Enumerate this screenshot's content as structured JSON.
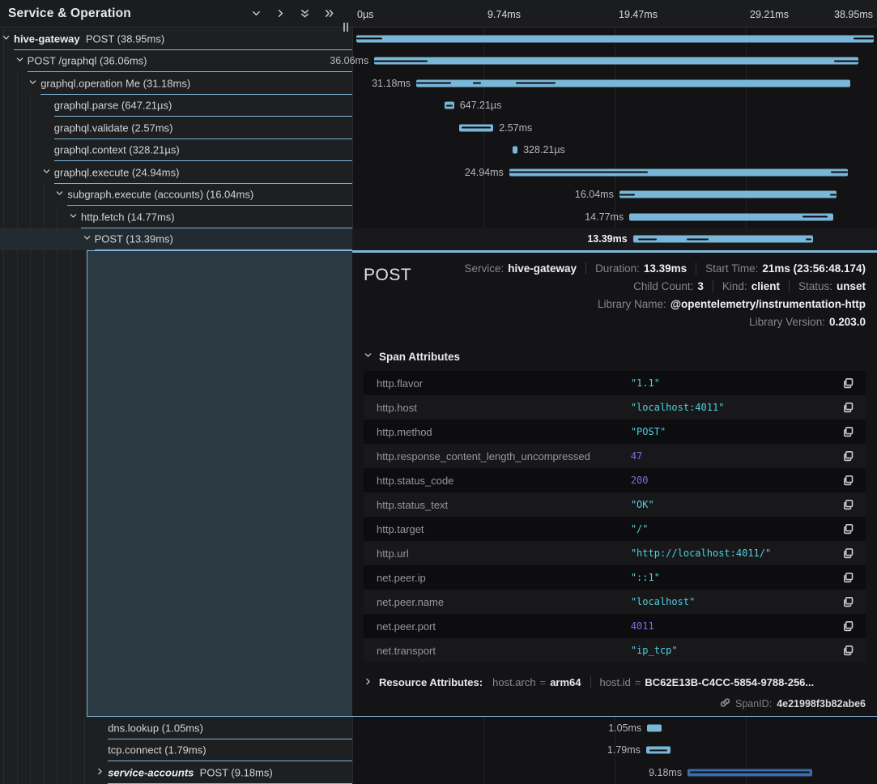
{
  "colors": {
    "accent_span": "#7fb7d8",
    "bar_light_blue": "#79b7d9",
    "bar_dark_blue": "#3b6cae",
    "value_string": "#50d0de",
    "value_number": "#7b6fe0",
    "selected_block": "#2b3943"
  },
  "header": {
    "left_title": "Service & Operation",
    "icons": [
      "chevron-down-icon",
      "chevron-right-icon",
      "double-chevron-down-icon",
      "double-chevron-right-icon",
      "drag-handle"
    ],
    "ticks": [
      "0µs",
      "9.74ms",
      "19.47ms",
      "29.21ms",
      "38.95ms"
    ]
  },
  "rows_top": [
    {
      "service": "hive-gateway",
      "italic": false,
      "name": "POST",
      "duration": "38.95ms",
      "depth": 0,
      "chevron": "down",
      "selected": false,
      "bar": {
        "left": 0.8,
        "width": 98.6,
        "color": "light",
        "label": "",
        "side": "none",
        "marks": [
          [
            0,
            5
          ],
          [
            96,
            4
          ]
        ]
      }
    },
    {
      "service": null,
      "name": "POST /graphql",
      "duration": "36.06ms",
      "depth": 1,
      "chevron": "down",
      "selected": false,
      "bar": {
        "left": 4.2,
        "width": 92.3,
        "color": "light",
        "label": "36.06ms",
        "side": "before",
        "marks": [
          [
            0,
            11
          ],
          [
            95,
            5
          ]
        ]
      }
    },
    {
      "service": null,
      "name": "graphql.operation Me",
      "duration": "31.18ms",
      "depth": 2,
      "chevron": "down",
      "selected": false,
      "bar": {
        "left": 12.2,
        "width": 82.7,
        "color": "light",
        "label": "31.18ms",
        "side": "before",
        "marks": [
          [
            0,
            8
          ],
          [
            13,
            2
          ],
          [
            23,
            9
          ]
        ]
      }
    },
    {
      "service": null,
      "name": "graphql.parse",
      "duration": "647.21µs",
      "depth": 3,
      "chevron": null,
      "selected": false,
      "bar": {
        "left": 17.6,
        "width": 1.8,
        "color": "light",
        "label": "647.21µs",
        "side": "after",
        "marks": [
          [
            15,
            70
          ]
        ]
      }
    },
    {
      "service": null,
      "name": "graphql.validate",
      "duration": "2.57ms",
      "depth": 3,
      "chevron": null,
      "selected": false,
      "bar": {
        "left": 20.3,
        "width": 6.6,
        "color": "light",
        "label": "2.57ms",
        "side": "after",
        "marks": [
          [
            8,
            84
          ]
        ]
      }
    },
    {
      "service": null,
      "name": "graphql.context",
      "duration": "328.21µs",
      "depth": 3,
      "chevron": null,
      "selected": false,
      "bar": {
        "left": 30.5,
        "width": 1.0,
        "color": "light",
        "label": "328.21µs",
        "side": "after",
        "marks": []
      }
    },
    {
      "service": null,
      "name": "graphql.execute",
      "duration": "24.94ms",
      "depth": 3,
      "chevron": "down",
      "selected": false,
      "bar": {
        "left": 29.9,
        "width": 64.6,
        "color": "light",
        "label": "24.94ms",
        "side": "before",
        "marks": [
          [
            0,
            41
          ],
          [
            95,
            5
          ]
        ]
      }
    },
    {
      "service": null,
      "name": "subgraph.execute (accounts)",
      "duration": "16.04ms",
      "depth": 4,
      "chevron": "down",
      "selected": false,
      "bar": {
        "left": 50.9,
        "width": 41.4,
        "color": "light",
        "label": "16.04ms",
        "side": "before",
        "marks": [
          [
            0,
            7
          ],
          [
            97,
            3
          ]
        ]
      }
    },
    {
      "service": null,
      "name": "http.fetch",
      "duration": "14.77ms",
      "depth": 5,
      "chevron": "down",
      "selected": false,
      "bar": {
        "left": 52.8,
        "width": 38.9,
        "color": "light",
        "label": "14.77ms",
        "side": "before",
        "marks": [
          [
            85,
            12
          ]
        ]
      }
    },
    {
      "service": null,
      "name": "POST",
      "duration": "13.39ms",
      "depth": 6,
      "chevron": "down",
      "selected": true,
      "bar": {
        "left": 53.5,
        "width": 34.3,
        "color": "light",
        "label": "13.39ms",
        "side": "before",
        "marks": [
          [
            3,
            10
          ],
          [
            30,
            12
          ],
          [
            96,
            3
          ]
        ]
      }
    }
  ],
  "rows_bottom": [
    {
      "service": null,
      "name": "dns.lookup",
      "duration": "1.05ms",
      "depth": 7,
      "chevron": null,
      "selected": false,
      "bar": {
        "left": 56.2,
        "width": 2.8,
        "color": "light",
        "label": "1.05ms",
        "side": "before",
        "marks": []
      }
    },
    {
      "service": null,
      "name": "tcp.connect",
      "duration": "1.79ms",
      "depth": 7,
      "chevron": null,
      "selected": false,
      "bar": {
        "left": 56.0,
        "width": 4.7,
        "color": "light",
        "label": "1.79ms",
        "side": "before",
        "marks": [
          [
            15,
            70
          ]
        ]
      }
    },
    {
      "service": "service-accounts",
      "italic": true,
      "name": "POST",
      "duration": "9.18ms",
      "depth": 7,
      "chevron": "right",
      "selected": false,
      "bar": {
        "left": 63.9,
        "width": 23.7,
        "color": "blue",
        "label": "9.18ms",
        "side": "before",
        "marks": [
          [
            2,
            96
          ]
        ]
      }
    }
  ],
  "detail": {
    "title": "POST",
    "meta": [
      [
        {
          "l": "Service:",
          "v": "hive-gateway"
        },
        {
          "l": "Duration:",
          "v": "13.39ms"
        },
        {
          "l": "Start Time:",
          "v": "21ms (23:56:48.174)"
        }
      ],
      [
        {
          "l": "Child Count:",
          "v": "3"
        },
        {
          "l": "Kind:",
          "v": "client"
        },
        {
          "l": "Status:",
          "v": "unset"
        }
      ],
      [
        {
          "l": "Library Name:",
          "v": "@opentelemetry/instrumentation-http"
        }
      ],
      [
        {
          "l": "Library Version:",
          "v": "0.203.0"
        }
      ]
    ],
    "attributes_title": "Span Attributes",
    "attributes": [
      {
        "key": "http.flavor",
        "value": "\"1.1\"",
        "type": "string"
      },
      {
        "key": "http.host",
        "value": "\"localhost:4011\"",
        "type": "string"
      },
      {
        "key": "http.method",
        "value": "\"POST\"",
        "type": "string"
      },
      {
        "key": "http.response_content_length_uncompressed",
        "value": "47",
        "type": "number"
      },
      {
        "key": "http.status_code",
        "value": "200",
        "type": "number"
      },
      {
        "key": "http.status_text",
        "value": "\"OK\"",
        "type": "string"
      },
      {
        "key": "http.target",
        "value": "\"/\"",
        "type": "string"
      },
      {
        "key": "http.url",
        "value": "\"http://localhost:4011/\"",
        "type": "string"
      },
      {
        "key": "net.peer.ip",
        "value": "\"::1\"",
        "type": "string"
      },
      {
        "key": "net.peer.name",
        "value": "\"localhost\"",
        "type": "string"
      },
      {
        "key": "net.peer.port",
        "value": "4011",
        "type": "number"
      },
      {
        "key": "net.transport",
        "value": "\"ip_tcp\"",
        "type": "string"
      }
    ],
    "resource": {
      "label": "Resource Attributes:",
      "items": [
        {
          "key": "host.arch",
          "value": "arm64"
        },
        {
          "key": "host.id",
          "value": "BC62E13B-C4CC-5854-9788-256..."
        }
      ]
    },
    "spanid": {
      "label": "SpanID:",
      "value": "4e21998f3b82abe6"
    }
  }
}
